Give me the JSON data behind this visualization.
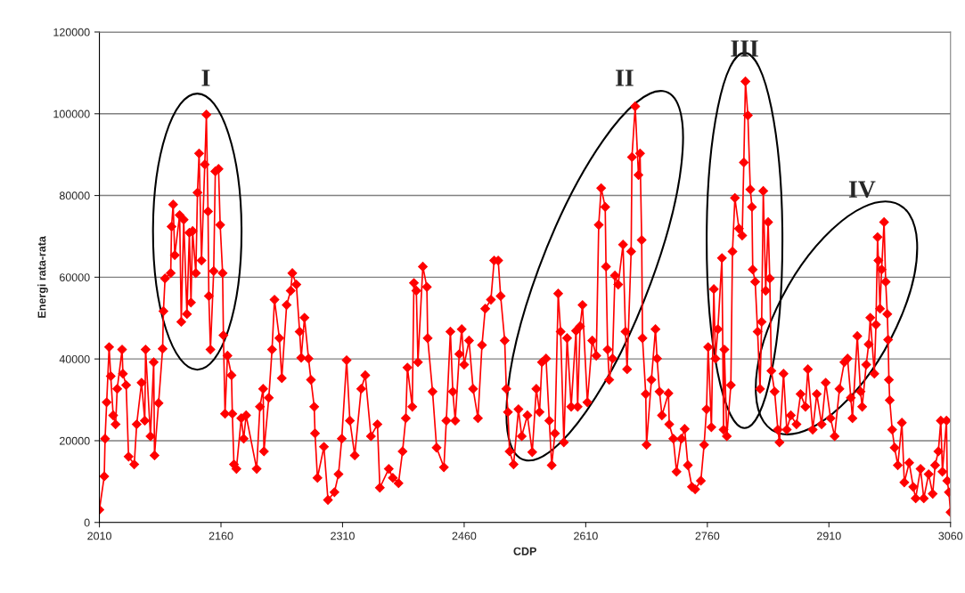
{
  "chart_data": {
    "type": "line",
    "xlabel": "CDP",
    "ylabel": "Energi rata-rata",
    "xlim": [
      2010,
      3060
    ],
    "xticks": [
      2010,
      2160,
      2310,
      2460,
      2610,
      2760,
      2910,
      3060
    ],
    "ylim": [
      0,
      120000
    ],
    "yticks": [
      0,
      20000,
      40000,
      60000,
      80000,
      100000,
      120000
    ],
    "grid": "y",
    "marker": "diamond",
    "line_style": "solid",
    "annotations": [
      "I",
      "II",
      "III",
      "IV"
    ],
    "series": [
      {
        "color": "#ff0000",
        "x": [
          2010,
          2016,
          2017,
          2019,
          2022,
          2024,
          2027,
          2030,
          2032,
          2038,
          2039,
          2043,
          2046,
          2053,
          2056,
          2062,
          2066,
          2067,
          2073,
          2077,
          2078,
          2083,
          2088,
          2089,
          2091,
          2098,
          2099,
          2101,
          2103,
          2109,
          2111,
          2114,
          2118,
          2121,
          2123,
          2125,
          2129,
          2131,
          2133,
          2136,
          2140,
          2142,
          2144,
          2145,
          2147,
          2151,
          2153,
          2157,
          2159,
          2162,
          2163,
          2165,
          2168,
          2173,
          2174,
          2176,
          2179,
          2185,
          2188,
          2191,
          2204,
          2208,
          2212,
          2213,
          2219,
          2223,
          2226,
          2232,
          2235,
          2241,
          2246,
          2248,
          2253,
          2257,
          2259,
          2263,
          2268,
          2271,
          2275,
          2276,
          2279,
          2287,
          2292,
          2300,
          2305,
          2309,
          2315,
          2319,
          2325,
          2333,
          2338,
          2345,
          2353,
          2356,
          2367,
          2372,
          2379,
          2384,
          2388,
          2390,
          2396,
          2398,
          2401,
          2403,
          2409,
          2414,
          2415,
          2421,
          2426,
          2435,
          2438,
          2443,
          2446,
          2449,
          2454,
          2457,
          2460,
          2466,
          2471,
          2477,
          2482,
          2486,
          2493,
          2497,
          2502,
          2505,
          2510,
          2512,
          2514,
          2516,
          2521,
          2527,
          2531,
          2538,
          2544,
          2549,
          2553,
          2556,
          2561,
          2565,
          2568,
          2572,
          2576,
          2579,
          2583,
          2587,
          2592,
          2598,
          2600,
          2603,
          2606,
          2612,
          2618,
          2623,
          2626,
          2629,
          2634,
          2635,
          2637,
          2639,
          2643,
          2646,
          2650,
          2656,
          2659,
          2661,
          2666,
          2667,
          2671,
          2675,
          2677,
          2679,
          2680,
          2684,
          2685,
          2691,
          2696,
          2698,
          2701,
          2704,
          2712,
          2713,
          2718,
          2722,
          2728,
          2732,
          2736,
          2741,
          2745,
          2752,
          2756,
          2759,
          2761,
          2765,
          2768,
          2770,
          2773,
          2778,
          2780,
          2781,
          2784,
          2789,
          2791,
          2794,
          2799,
          2803,
          2805,
          2807,
          2810,
          2813,
          2815,
          2816,
          2819,
          2822,
          2825,
          2827,
          2829,
          2832,
          2835,
          2837,
          2839,
          2843,
          2847,
          2849,
          2854,
          2858,
          2863,
          2870,
          2875,
          2881,
          2884,
          2890,
          2895,
          2901,
          2906,
          2912,
          2917,
          2923,
          2929,
          2933,
          2937,
          2939,
          2945,
          2949,
          2951,
          2956,
          2959,
          2961,
          2966,
          2968,
          2970,
          2971,
          2973,
          2975,
          2978,
          2980,
          2982,
          2983,
          2984,
          2985,
          2988,
          2991,
          2995,
          3000,
          3003,
          3009,
          3014,
          3017,
          3023,
          3027,
          3033,
          3038,
          3041,
          3045,
          3048,
          3050,
          3055,
          3056,
          3058,
          3060
        ],
        "values": [
          3100,
          11300,
          20500,
          29400,
          42900,
          35800,
          26200,
          24000,
          32700,
          42300,
          36400,
          33600,
          16100,
          14200,
          24000,
          34200,
          24900,
          42300,
          21100,
          39200,
          16400,
          29200,
          42500,
          51700,
          59700,
          61000,
          72400,
          77800,
          65400,
          75200,
          49100,
          74100,
          51000,
          70900,
          53800,
          71300,
          61000,
          80700,
          90300,
          64100,
          87600,
          99800,
          76100,
          55400,
          42300,
          61500,
          85900,
          86500,
          72800,
          61000,
          45800,
          26600,
          40800,
          36000,
          26600,
          14200,
          13100,
          25500,
          20500,
          26200,
          13100,
          28300,
          32700,
          17400,
          30500,
          42300,
          54500,
          45100,
          35300,
          53200,
          56700,
          61000,
          58200,
          46700,
          40300,
          50100,
          40100,
          34900,
          28300,
          21800,
          10900,
          18500,
          5500,
          7400,
          11800,
          20500,
          39700,
          24900,
          16400,
          32700,
          36000,
          21100,
          24000,
          8500,
          13100,
          10900,
          9600,
          17400,
          25500,
          37900,
          28300,
          58600,
          56700,
          39200,
          62600,
          57600,
          45100,
          32000,
          18300,
          13500,
          24900,
          46700,
          32000,
          24900,
          41200,
          47300,
          38600,
          44500,
          32700,
          25500,
          43400,
          52300,
          54500,
          64100,
          64100,
          55400,
          44500,
          32700,
          27000,
          17400,
          14200,
          27700,
          21100,
          26200,
          17200,
          32700,
          27000,
          39200,
          40100,
          24900,
          14000,
          21800,
          56000,
          46700,
          19600,
          45100,
          28300,
          46900,
          28300,
          48000,
          53200,
          29400,
          44500,
          40800,
          72800,
          81800,
          77200,
          62600,
          42300,
          34900,
          40100,
          60400,
          58200,
          68000,
          46700,
          37500,
          66300,
          89400,
          101800,
          85000,
          90300,
          69100,
          45100,
          31400,
          19000,
          34900,
          47300,
          40100,
          32000,
          26200,
          31600,
          24000,
          20500,
          12400,
          20500,
          22900,
          14000,
          8700,
          8100,
          10200,
          19000,
          27700,
          42900,
          23300,
          57100,
          40100,
          47300,
          64700,
          22700,
          42300,
          21100,
          33600,
          66300,
          79400,
          71900,
          70200,
          88100,
          107900,
          99600,
          81500,
          77200,
          61900,
          58900,
          46700,
          32700,
          49100,
          81100,
          56700,
          73500,
          59700,
          37100,
          32000,
          22700,
          19600,
          36400,
          22700,
          26200,
          24000,
          31400,
          28300,
          37500,
          22700,
          31400,
          24000,
          34200,
          25500,
          21100,
          32700,
          39200,
          40100,
          30500,
          25500,
          45600,
          32000,
          28300,
          38600,
          43600,
          50100,
          36400,
          48400,
          69800,
          64100,
          52300,
          61900,
          73500,
          58900,
          51000,
          44700,
          34900,
          29900,
          22700,
          18300,
          14000,
          24400,
          9800,
          14600,
          8700,
          5900,
          13100,
          5900,
          11800,
          7000,
          14000,
          17400,
          24900,
          12400,
          24900,
          10200,
          7400,
          2500
        ]
      }
    ]
  }
}
